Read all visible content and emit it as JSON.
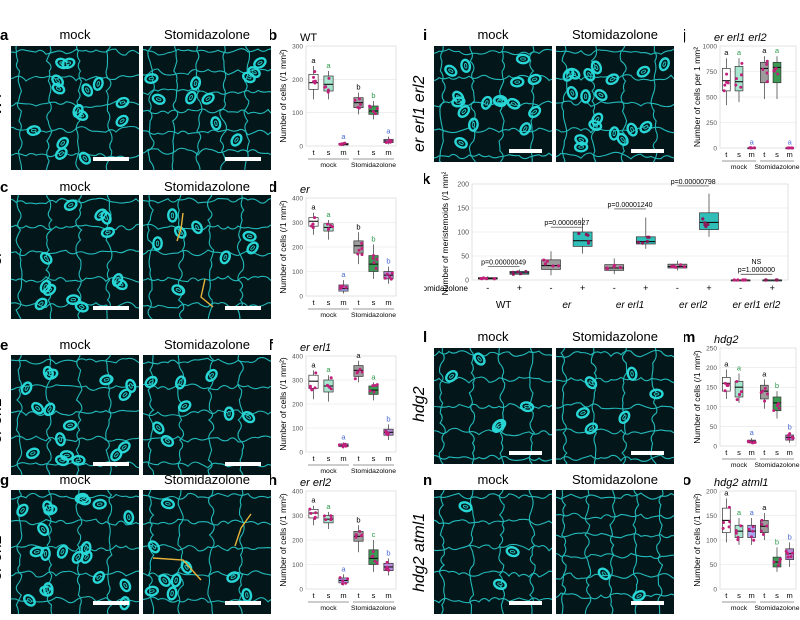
{
  "row_labels": {
    "a": "WT",
    "c": "er",
    "e": "er erl1",
    "g": "er erl2",
    "i": "er erl1 erl2",
    "l": "hdg2",
    "n": "hdg2 atml1"
  },
  "panel_letters": [
    "a",
    "b",
    "c",
    "d",
    "e",
    "f",
    "g",
    "h",
    "i",
    "j",
    "k",
    "l",
    "m",
    "n",
    "o"
  ],
  "condition_mock": "mock",
  "condition_treat": "Stomidazolone",
  "colors": {
    "t_box": "#ffffff",
    "s_box_mock": "#a8e6cf",
    "s_box_treat": "#3a9a53",
    "m_box_mock": "#a9a9f2",
    "m_box_treat": "#b48ad9",
    "gray_box": "#9c9c9c",
    "teal_box": "#2fbfb8",
    "letter_t": "#000000",
    "letter_s": "#2a9a4a",
    "letter_m": "#4a6bd6",
    "points": "#c0207a",
    "cells": "#29d6d6"
  },
  "chart_data": [
    {
      "id": "b",
      "type": "box",
      "title": "WT",
      "ylabel": "Number of cells (/1 mm²)",
      "ylim": [
        0,
        300
      ],
      "yticks": [
        "0",
        "100",
        "200",
        "300"
      ],
      "categories": [
        "t",
        "s",
        "m",
        "t",
        "s",
        "m"
      ],
      "group_labels": [
        "mock",
        "Stomidazolone"
      ],
      "boxes": [
        {
          "cat": "t",
          "group": "mock",
          "q1": 170,
          "median": 190,
          "q3": 215,
          "min": 140,
          "max": 240,
          "letter": "a",
          "box_color": "#ffffff"
        },
        {
          "cat": "s",
          "group": "mock",
          "q1": 165,
          "median": 185,
          "q3": 210,
          "min": 140,
          "max": 225,
          "letter": "a",
          "box_color": "#a8e6cf"
        },
        {
          "cat": "m",
          "group": "mock",
          "q1": 3,
          "median": 5,
          "q3": 8,
          "min": 0,
          "max": 12,
          "letter": "a",
          "box_color": "#a9a9f2"
        },
        {
          "cat": "t",
          "group": "Stomidazolone",
          "q1": 115,
          "median": 130,
          "q3": 145,
          "min": 95,
          "max": 160,
          "letter": "b",
          "box_color": "#9c9c9c"
        },
        {
          "cat": "s",
          "group": "Stomidazolone",
          "q1": 95,
          "median": 105,
          "q3": 120,
          "min": 80,
          "max": 135,
          "letter": "b",
          "box_color": "#3a9a53"
        },
        {
          "cat": "m",
          "group": "Stomidazolone",
          "q1": 10,
          "median": 15,
          "q3": 20,
          "min": 5,
          "max": 28,
          "letter": "a",
          "box_color": "#b48ad9"
        }
      ]
    },
    {
      "id": "d",
      "type": "box",
      "title": "er",
      "ylabel": "Number of cells (/1 mm²)",
      "ylim": [
        0,
        400
      ],
      "yticks": [
        "0",
        "100",
        "200",
        "300",
        "400"
      ],
      "categories": [
        "t",
        "s",
        "m",
        "t",
        "s",
        "m"
      ],
      "group_labels": [
        "mock",
        "Stomidazolone"
      ],
      "boxes": [
        {
          "cat": "t",
          "group": "mock",
          "q1": 285,
          "median": 305,
          "q3": 320,
          "min": 250,
          "max": 340,
          "letter": "a",
          "box_color": "#ffffff"
        },
        {
          "cat": "s",
          "group": "mock",
          "q1": 265,
          "median": 280,
          "q3": 295,
          "min": 230,
          "max": 310,
          "letter": "a",
          "box_color": "#a8e6cf"
        },
        {
          "cat": "m",
          "group": "mock",
          "q1": 20,
          "median": 30,
          "q3": 45,
          "min": 10,
          "max": 65,
          "letter": "a",
          "box_color": "#a9a9f2"
        },
        {
          "cat": "t",
          "group": "Stomidazolone",
          "q1": 175,
          "median": 205,
          "q3": 225,
          "min": 130,
          "max": 260,
          "letter": "b",
          "box_color": "#9c9c9c"
        },
        {
          "cat": "s",
          "group": "Stomidazolone",
          "q1": 100,
          "median": 130,
          "q3": 165,
          "min": 70,
          "max": 210,
          "letter": "b",
          "box_color": "#3a9a53"
        },
        {
          "cat": "m",
          "group": "Stomidazolone",
          "q1": 70,
          "median": 85,
          "q3": 100,
          "min": 50,
          "max": 120,
          "letter": "b",
          "box_color": "#b48ad9"
        }
      ]
    },
    {
      "id": "f",
      "type": "box",
      "title": "er erl1",
      "ylabel": "Number of cells (/1 mm²)",
      "ylim": [
        0,
        400
      ],
      "yticks": [
        "0",
        "100",
        "200",
        "300",
        "400"
      ],
      "categories": [
        "t",
        "s",
        "m",
        "t",
        "s",
        "m"
      ],
      "group_labels": [
        "mock",
        "Stomidazolone"
      ],
      "boxes": [
        {
          "cat": "t",
          "group": "mock",
          "q1": 265,
          "median": 295,
          "q3": 320,
          "min": 220,
          "max": 340,
          "letter": "a",
          "box_color": "#ffffff"
        },
        {
          "cat": "s",
          "group": "mock",
          "q1": 250,
          "median": 275,
          "q3": 300,
          "min": 210,
          "max": 320,
          "letter": "a",
          "box_color": "#a8e6cf"
        },
        {
          "cat": "m",
          "group": "mock",
          "q1": 22,
          "median": 28,
          "q3": 34,
          "min": 15,
          "max": 40,
          "letter": "a",
          "box_color": "#a9a9f2"
        },
        {
          "cat": "t",
          "group": "Stomidazolone",
          "q1": 315,
          "median": 340,
          "q3": 360,
          "min": 290,
          "max": 380,
          "letter": "a",
          "box_color": "#9c9c9c"
        },
        {
          "cat": "s",
          "group": "Stomidazolone",
          "q1": 240,
          "median": 258,
          "q3": 275,
          "min": 215,
          "max": 290,
          "letter": "a",
          "box_color": "#3a9a53"
        },
        {
          "cat": "m",
          "group": "Stomidazolone",
          "q1": 70,
          "median": 82,
          "q3": 95,
          "min": 50,
          "max": 115,
          "letter": "b",
          "box_color": "#b48ad9"
        }
      ]
    },
    {
      "id": "h",
      "type": "box",
      "title": "er erl2",
      "ylabel": "Number of cells (/1 mm²)",
      "ylim": [
        0,
        400
      ],
      "yticks": [
        "0",
        "100",
        "200",
        "300",
        "400"
      ],
      "categories": [
        "t",
        "s",
        "m",
        "t",
        "s",
        "m"
      ],
      "group_labels": [
        "mock",
        "Stomidazolone"
      ],
      "boxes": [
        {
          "cat": "t",
          "group": "mock",
          "q1": 290,
          "median": 310,
          "q3": 325,
          "min": 260,
          "max": 340,
          "letter": "a",
          "box_color": "#ffffff"
        },
        {
          "cat": "s",
          "group": "mock",
          "q1": 270,
          "median": 285,
          "q3": 300,
          "min": 245,
          "max": 315,
          "letter": "a",
          "box_color": "#a8e6cf"
        },
        {
          "cat": "m",
          "group": "mock",
          "q1": 25,
          "median": 35,
          "q3": 45,
          "min": 15,
          "max": 60,
          "letter": "a",
          "box_color": "#a9a9f2"
        },
        {
          "cat": "t",
          "group": "Stomidazolone",
          "q1": 195,
          "median": 215,
          "q3": 235,
          "min": 150,
          "max": 260,
          "letter": "b",
          "box_color": "#9c9c9c"
        },
        {
          "cat": "s",
          "group": "Stomidazolone",
          "q1": 100,
          "median": 125,
          "q3": 160,
          "min": 70,
          "max": 200,
          "letter": "c",
          "box_color": "#3a9a53"
        },
        {
          "cat": "m",
          "group": "Stomidazolone",
          "q1": 75,
          "median": 90,
          "q3": 105,
          "min": 55,
          "max": 125,
          "letter": "b",
          "box_color": "#b48ad9"
        }
      ]
    },
    {
      "id": "j",
      "type": "box",
      "title": "er erl1 erl2",
      "ylabel": "Number of cells per 1 mm²",
      "ylim": [
        0,
        1000
      ],
      "yticks": [
        "0",
        "250",
        "500",
        "750",
        "1000"
      ],
      "categories": [
        "t",
        "s",
        "m",
        "t",
        "s",
        "m"
      ],
      "group_labels": [
        "mock",
        "Stomidazolone"
      ],
      "boxes": [
        {
          "cat": "t",
          "group": "mock",
          "q1": 560,
          "median": 660,
          "q3": 780,
          "min": 420,
          "max": 880,
          "letter": "a",
          "box_color": "#ffffff"
        },
        {
          "cat": "s",
          "group": "mock",
          "q1": 560,
          "median": 650,
          "q3": 800,
          "min": 450,
          "max": 880,
          "letter": "a",
          "box_color": "#a8e6cf"
        },
        {
          "cat": "m",
          "group": "mock",
          "q1": 0,
          "median": 0,
          "q3": 2,
          "min": 0,
          "max": 4,
          "letter": "a",
          "box_color": "#a9a9f2"
        },
        {
          "cat": "t",
          "group": "Stomidazolone",
          "q1": 640,
          "median": 780,
          "q3": 840,
          "min": 480,
          "max": 900,
          "letter": "a",
          "box_color": "#9c9c9c"
        },
        {
          "cat": "s",
          "group": "Stomidazolone",
          "q1": 640,
          "median": 790,
          "q3": 840,
          "min": 480,
          "max": 900,
          "letter": "a",
          "box_color": "#3a9a53"
        },
        {
          "cat": "m",
          "group": "Stomidazolone",
          "q1": 0,
          "median": 0,
          "q3": 2,
          "min": 0,
          "max": 4,
          "letter": "a",
          "box_color": "#b48ad9"
        }
      ]
    },
    {
      "id": "k",
      "type": "box",
      "title": "",
      "ylabel": "Number of meristemoids (/1 mm²)",
      "ylim": [
        0,
        200
      ],
      "yticks": [
        "0",
        "50",
        "100",
        "150",
        "200"
      ],
      "x_axis_label": "Stomidazolone",
      "treat_signs": [
        "-",
        "+",
        "-",
        "+",
        "-",
        "+",
        "-",
        "+",
        "-",
        "+"
      ],
      "genotypes": [
        "WT",
        "er",
        "er erl1",
        "er erl2",
        "er erl1 erl2"
      ],
      "pvalues": [
        "p=0.00000049",
        "p=0.00006927",
        "p=0.00001240",
        "p=0.00000798",
        "NS\np=1.000000"
      ],
      "boxes": [
        {
          "q1": 2,
          "median": 3,
          "q3": 5,
          "min": 0,
          "max": 8,
          "box_color": "#9c9c9c"
        },
        {
          "q1": 12,
          "median": 15,
          "q3": 18,
          "min": 10,
          "max": 22,
          "box_color": "#2fbfb8"
        },
        {
          "q1": 22,
          "median": 30,
          "q3": 42,
          "min": 10,
          "max": 60,
          "box_color": "#9c9c9c"
        },
        {
          "q1": 70,
          "median": 82,
          "q3": 100,
          "min": 55,
          "max": 130,
          "box_color": "#2fbfb8"
        },
        {
          "q1": 20,
          "median": 25,
          "q3": 32,
          "min": 12,
          "max": 45,
          "box_color": "#9c9c9c"
        },
        {
          "q1": 75,
          "median": 80,
          "q3": 90,
          "min": 65,
          "max": 130,
          "box_color": "#2fbfb8"
        },
        {
          "q1": 25,
          "median": 28,
          "q3": 33,
          "min": 20,
          "max": 40,
          "box_color": "#9c9c9c"
        },
        {
          "q1": 105,
          "median": 120,
          "q3": 140,
          "min": 90,
          "max": 180,
          "box_color": "#2fbfb8"
        },
        {
          "q1": 0,
          "median": 0,
          "q3": 0,
          "min": 0,
          "max": 1,
          "box_color": "#9c9c9c"
        },
        {
          "q1": 0,
          "median": 0,
          "q3": 0,
          "min": 0,
          "max": 1,
          "box_color": "#2fbfb8"
        }
      ]
    },
    {
      "id": "m",
      "type": "box",
      "title": "hdg2",
      "ylabel": "Number of cells (/1 mm²)",
      "ylim": [
        0,
        250
      ],
      "yticks": [
        "0",
        "50",
        "100",
        "150",
        "200",
        "250"
      ],
      "categories": [
        "t",
        "s",
        "m",
        "t",
        "s",
        "m"
      ],
      "group_labels": [
        "mock",
        "Stomidazolone"
      ],
      "boxes": [
        {
          "cat": "t",
          "group": "mock",
          "q1": 140,
          "median": 160,
          "q3": 175,
          "min": 120,
          "max": 195,
          "letter": "a",
          "box_color": "#ffffff"
        },
        {
          "cat": "s",
          "group": "mock",
          "q1": 125,
          "median": 150,
          "q3": 165,
          "min": 110,
          "max": 185,
          "letter": "a",
          "box_color": "#a8e6cf"
        },
        {
          "cat": "m",
          "group": "mock",
          "q1": 8,
          "median": 12,
          "q3": 15,
          "min": 5,
          "max": 20,
          "letter": "a",
          "box_color": "#a9a9f2"
        },
        {
          "cat": "t",
          "group": "Stomidazolone",
          "q1": 120,
          "median": 140,
          "q3": 155,
          "min": 95,
          "max": 170,
          "letter": "a",
          "box_color": "#9c9c9c"
        },
        {
          "cat": "s",
          "group": "Stomidazolone",
          "q1": 90,
          "median": 110,
          "q3": 125,
          "min": 70,
          "max": 140,
          "letter": "b",
          "box_color": "#3a9a53"
        },
        {
          "cat": "m",
          "group": "Stomidazolone",
          "q1": 15,
          "median": 22,
          "q3": 28,
          "min": 8,
          "max": 35,
          "letter": "b",
          "box_color": "#b48ad9"
        }
      ]
    },
    {
      "id": "o",
      "type": "box",
      "title": "hdg2 atml1",
      "ylabel": "Number of cells (/1 mm²)",
      "ylim": [
        0,
        200
      ],
      "yticks": [
        "0",
        "50",
        "100",
        "150",
        "200"
      ],
      "categories": [
        "t",
        "s",
        "m",
        "t",
        "s",
        "m"
      ],
      "group_labels": [
        "mock",
        "Stomidazolone"
      ],
      "boxes": [
        {
          "cat": "t",
          "group": "mock",
          "q1": 115,
          "median": 140,
          "q3": 165,
          "min": 95,
          "max": 185,
          "letter": "a",
          "box_color": "#ffffff"
        },
        {
          "cat": "s",
          "group": "mock",
          "q1": 105,
          "median": 118,
          "q3": 130,
          "min": 90,
          "max": 145,
          "letter": "a",
          "box_color": "#a8e6cf"
        },
        {
          "cat": "m",
          "group": "mock",
          "q1": 105,
          "median": 118,
          "q3": 130,
          "min": 90,
          "max": 145,
          "letter": "a",
          "box_color": "#a9a9f2"
        },
        {
          "cat": "t",
          "group": "Stomidazolone",
          "q1": 115,
          "median": 128,
          "q3": 140,
          "min": 100,
          "max": 155,
          "letter": "a",
          "box_color": "#9c9c9c"
        },
        {
          "cat": "s",
          "group": "Stomidazolone",
          "q1": 45,
          "median": 55,
          "q3": 65,
          "min": 35,
          "max": 85,
          "letter": "b",
          "box_color": "#3a9a53"
        },
        {
          "cat": "m",
          "group": "Stomidazolone",
          "q1": 60,
          "median": 72,
          "q3": 82,
          "min": 45,
          "max": 95,
          "letter": "b",
          "box_color": "#b48ad9"
        }
      ]
    }
  ]
}
